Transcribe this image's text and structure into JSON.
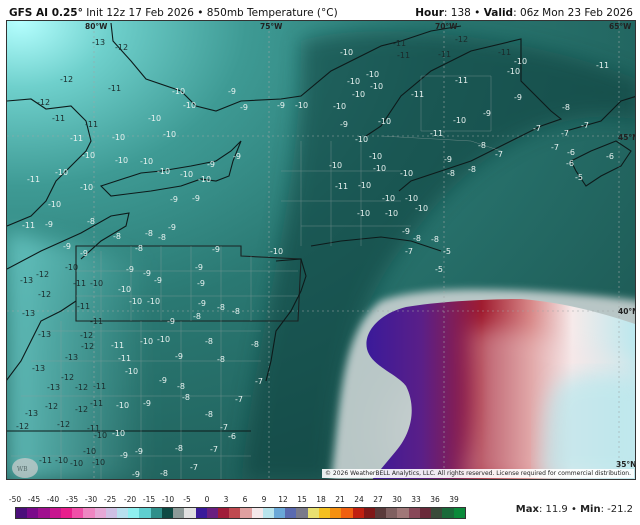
{
  "header": {
    "model": "GFS AI 0.25°",
    "init": "Init 12z 17 Feb 2026",
    "product": "850mb Temperature (°C)",
    "hour_label": "Hour",
    "hour": "138",
    "valid_label": "Valid",
    "valid": "06z Mon 23 Feb 2026",
    "separator": "•"
  },
  "map": {
    "longitude_labels": [
      "80°W",
      "75°W",
      "70°W",
      "65°W"
    ],
    "latitude_labels": [
      "45°N",
      "40°N",
      "35°N"
    ],
    "logo_text": "WeatherBELL",
    "copyright": "© 2026 WeatherBELL Analytics, LLC. All rights reserved. License required for commercial distribution.",
    "temperature_labels": [
      "-13",
      "-12",
      "-12",
      "-11",
      "-12",
      "-11",
      "-10",
      "-10",
      "-10",
      "-10",
      "-9",
      "-9",
      "-9",
      "-10",
      "-11",
      "-11",
      "-10",
      "-10",
      "-10",
      "-10",
      "-10",
      "-10",
      "-10",
      "-9",
      "-9",
      "-11",
      "-10",
      "-10",
      "-10",
      "-9",
      "-9",
      "-8",
      "-9",
      "-11",
      "-8",
      "-8",
      "-8",
      "-9",
      "-10",
      "-11",
      "-11",
      "-11",
      "-12",
      "-11",
      "-10",
      "-10",
      "-11",
      "-10",
      "-10",
      "-10",
      "-10",
      "-10",
      "-11",
      "-11",
      "-9",
      "-8",
      "-10",
      "-9",
      "-9",
      "-10",
      "-11",
      "-7",
      "-7",
      "-7",
      "-7",
      "-6",
      "-6",
      "-6",
      "-5",
      "-9",
      "-8",
      "-7",
      "-8",
      "-8",
      "-10",
      "-10",
      "-10",
      "-10",
      "-11",
      "-10",
      "-10",
      "-10",
      "-10",
      "-10",
      "-10",
      "-10",
      "-9",
      "-8",
      "-8",
      "-5",
      "-5",
      "-7",
      "-9",
      "-9",
      "-8",
      "-9",
      "-10",
      "-12",
      "-13",
      "-10",
      "-11",
      "-10",
      "-12",
      "-11",
      "-13",
      "-10",
      "-10",
      "-10",
      "-9",
      "-9",
      "-9",
      "-9",
      "-9",
      "-9",
      "-8",
      "-8",
      "-11",
      "-12",
      "-13",
      "-12",
      "-11",
      "-9",
      "-10",
      "-11",
      "-13",
      "-13",
      "-12",
      "-10",
      "-10",
      "-9",
      "-8",
      "-8",
      "-8",
      "-8",
      "-7",
      "-7",
      "-13",
      "-12",
      "-11",
      "-12",
      "-12",
      "-11",
      "-13",
      "-12",
      "-12",
      "-11",
      "-10",
      "-10",
      "-10",
      "-9",
      "-9",
      "-8",
      "-8",
      "-8",
      "-7",
      "-8",
      "-9",
      "-9",
      "-10",
      "-11",
      "-10",
      "-10",
      "-10",
      "-9",
      "-8",
      "-7",
      "-6",
      "-7"
    ]
  },
  "colorbar": {
    "ticks": [
      "-50",
      "-45",
      "-40",
      "-35",
      "-30",
      "-25",
      "-20",
      "-15",
      "-10",
      "-5",
      "0",
      "3",
      "6",
      "9",
      "12",
      "15",
      "18",
      "21",
      "24",
      "27",
      "30",
      "33",
      "36",
      "39"
    ],
    "colors": [
      "#4b0f7a",
      "#7a0a8a",
      "#a0108f",
      "#c8168f",
      "#e81e8c",
      "#f04fa8",
      "#ef86c2",
      "#e6a8d6",
      "#cfc0e4",
      "#b8e0ee",
      "#8ff0f0",
      "#5fcfd0",
      "#2f8f8a",
      "#0f4a44",
      "#8c9a98",
      "#e0e0e0",
      "#3a1a9a",
      "#6a1f80",
      "#a01c3a",
      "#c04a50",
      "#e0a0a0",
      "#f4e8ea",
      "#b8e4ec",
      "#6aa8d8",
      "#5a6ab0",
      "#7a7a8a",
      "#e8e070",
      "#f4c020",
      "#f49010",
      "#f06010",
      "#c02010",
      "#801818",
      "#5a3a3a",
      "#806060",
      "#a07878",
      "#884858",
      "#6a2a3a",
      "#3a4a3a",
      "#1a6a3a",
      "#0a8a3a"
    ],
    "max_label": "Max",
    "max": "11.9",
    "min_label": "Min",
    "min": "-21.2"
  }
}
